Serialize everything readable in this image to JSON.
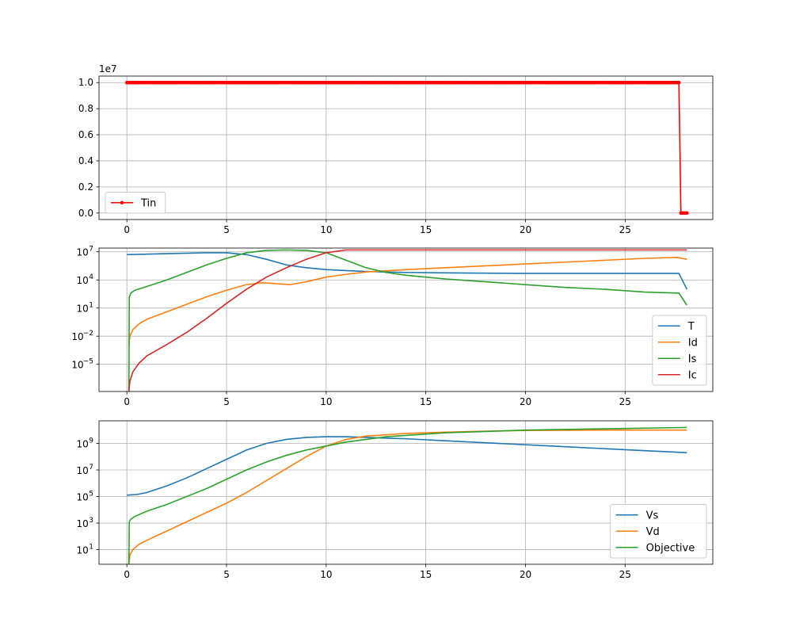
{
  "chart_data": [
    {
      "type": "line",
      "yscale": "linear",
      "xlim": [
        -1.4,
        29.4
      ],
      "ylim": [
        -0.05,
        1.05
      ],
      "xticks": [
        0,
        5,
        10,
        15,
        20,
        25
      ],
      "xtick_labels": [
        "0",
        "5",
        "10",
        "15",
        "20",
        "25"
      ],
      "yticks": [
        0,
        0.2,
        0.4,
        0.6,
        0.8,
        1.0
      ],
      "ytick_labels": [
        "0.0",
        "0.2",
        "0.4",
        "0.6",
        "0.8",
        "1.0"
      ],
      "y_offset_label": "1e7",
      "grid": true,
      "legend_position": "lower-left",
      "series": [
        {
          "name": "Tin",
          "color": "#ff0000",
          "marker": "dot",
          "x_start": 0,
          "x_end": 28.1,
          "x_step": 0.1,
          "x_switch": 27.7,
          "y_before": 1.0,
          "y_after": 0.0
        }
      ]
    },
    {
      "type": "line",
      "yscale": "log",
      "xlim": [
        -1.4,
        29.4
      ],
      "ylim": [
        -7.9,
        7.4
      ],
      "xticks": [
        0,
        5,
        10,
        15,
        20,
        25
      ],
      "xtick_labels": [
        "0",
        "5",
        "10",
        "15",
        "20",
        "25"
      ],
      "yticks_exp": [
        7,
        4,
        1,
        -2,
        -5
      ],
      "ytick_labels": [
        "10",
        "10",
        "10",
        "10",
        "10"
      ],
      "ytick_exponents": [
        "7",
        "4",
        "1",
        "−2",
        "−5"
      ],
      "grid": true,
      "legend_position": "lower-right",
      "series": [
        {
          "name": "T",
          "color": "#1f77b4",
          "x": [
            0,
            2,
            4,
            5,
            6,
            7,
            8,
            9,
            10,
            11,
            12,
            14,
            16,
            18,
            20,
            24,
            27.7,
            28.1
          ],
          "log10_y": [
            6.7,
            6.8,
            6.9,
            6.9,
            6.7,
            6.2,
            5.6,
            5.3,
            5.1,
            5.0,
            4.9,
            4.8,
            4.75,
            4.72,
            4.7,
            4.7,
            4.7,
            3.0
          ]
        },
        {
          "name": "Id",
          "color": "#ff7f0e",
          "x": [
            0.1,
            0.15,
            0.3,
            0.6,
            1,
            2,
            3,
            4,
            5,
            6,
            6.8,
            7.5,
            8.2,
            9,
            10,
            11,
            12,
            14,
            16,
            18,
            20,
            22,
            24,
            26,
            27.6,
            28.1
          ],
          "log10_y": [
            -2.9,
            -2.0,
            -1.3,
            -0.7,
            -0.2,
            0.6,
            1.4,
            2.2,
            2.9,
            3.5,
            3.7,
            3.6,
            3.5,
            3.8,
            4.3,
            4.6,
            4.85,
            5.1,
            5.3,
            5.5,
            5.7,
            5.9,
            6.1,
            6.3,
            6.4,
            6.2
          ]
        },
        {
          "name": "Is",
          "color": "#2ca02c",
          "x": [
            0.1,
            0.12,
            0.2,
            0.4,
            1,
            2,
            3,
            4,
            5,
            6,
            7,
            8,
            9,
            10,
            11,
            12,
            13,
            14,
            16,
            18,
            20,
            22,
            24,
            26,
            27.7,
            28.1
          ],
          "log10_y": [
            -7.9,
            2.2,
            2.6,
            2.9,
            3.3,
            4.0,
            4.8,
            5.6,
            6.3,
            6.9,
            7.15,
            7.2,
            7.15,
            6.9,
            6.1,
            5.3,
            4.8,
            4.5,
            4.1,
            3.8,
            3.5,
            3.2,
            3.0,
            2.7,
            2.6,
            1.3
          ]
        },
        {
          "name": "Ic",
          "color": "#d62728",
          "x": [
            0.1,
            0.15,
            0.3,
            0.6,
            1,
            2,
            3,
            4,
            5,
            6,
            7,
            8,
            9,
            10,
            11,
            12,
            14,
            16,
            20,
            24,
            28.1
          ],
          "log10_y": [
            -7.9,
            -6.8,
            -5.8,
            -4.9,
            -4.1,
            -2.9,
            -1.6,
            -0.1,
            1.5,
            3.0,
            4.3,
            5.3,
            6.2,
            6.9,
            7.2,
            7.2,
            7.2,
            7.2,
            7.2,
            7.2,
            7.2
          ]
        }
      ]
    },
    {
      "type": "line",
      "yscale": "log",
      "xlim": [
        -1.4,
        29.4
      ],
      "ylim": [
        -0.1,
        10.7
      ],
      "xticks": [
        0,
        5,
        10,
        15,
        20,
        25
      ],
      "xtick_labels": [
        "0",
        "5",
        "10",
        "15",
        "20",
        "25"
      ],
      "yticks_exp": [
        9,
        7,
        5,
        3,
        1
      ],
      "ytick_labels": [
        "10",
        "10",
        "10",
        "10",
        "10"
      ],
      "ytick_exponents": [
        "9",
        "7",
        "5",
        "3",
        "1"
      ],
      "grid": true,
      "legend_position": "lower-right",
      "series": [
        {
          "name": "Vs",
          "color": "#1f77b4",
          "x": [
            0,
            0.5,
            1,
            2,
            3,
            4,
            5,
            6,
            7,
            8,
            9,
            10,
            11,
            12,
            14,
            16,
            18,
            20,
            22,
            24,
            26,
            28.1
          ],
          "log10_y": [
            5.1,
            5.15,
            5.3,
            5.8,
            6.4,
            7.1,
            7.8,
            8.5,
            9.0,
            9.3,
            9.45,
            9.5,
            9.5,
            9.45,
            9.35,
            9.2,
            9.05,
            8.9,
            8.75,
            8.6,
            8.45,
            8.3
          ]
        },
        {
          "name": "Vd",
          "color": "#ff7f0e",
          "x": [
            0.1,
            0.15,
            0.3,
            0.6,
            1,
            2,
            3,
            4,
            5,
            6,
            7,
            8,
            9,
            10,
            11,
            12,
            14,
            16,
            18,
            20,
            24,
            28.1
          ],
          "log10_y": [
            -0.1,
            0.6,
            1.0,
            1.4,
            1.7,
            2.4,
            3.1,
            3.8,
            4.5,
            5.3,
            6.2,
            7.1,
            8.0,
            8.8,
            9.3,
            9.55,
            9.75,
            9.85,
            9.92,
            9.97,
            10.0,
            10.0
          ]
        },
        {
          "name": "Objective",
          "color": "#2ca02c",
          "x": [
            0.1,
            0.12,
            0.2,
            0.4,
            1,
            2,
            3,
            4,
            5,
            6,
            7,
            8,
            9,
            10,
            11,
            12,
            13,
            14,
            16,
            18,
            20,
            24,
            28.1
          ],
          "log10_y": [
            -0.1,
            3.1,
            3.3,
            3.5,
            3.9,
            4.4,
            5.0,
            5.6,
            6.3,
            7.0,
            7.6,
            8.1,
            8.5,
            8.8,
            9.1,
            9.3,
            9.5,
            9.6,
            9.8,
            9.9,
            10.0,
            10.1,
            10.2
          ]
        }
      ]
    }
  ]
}
